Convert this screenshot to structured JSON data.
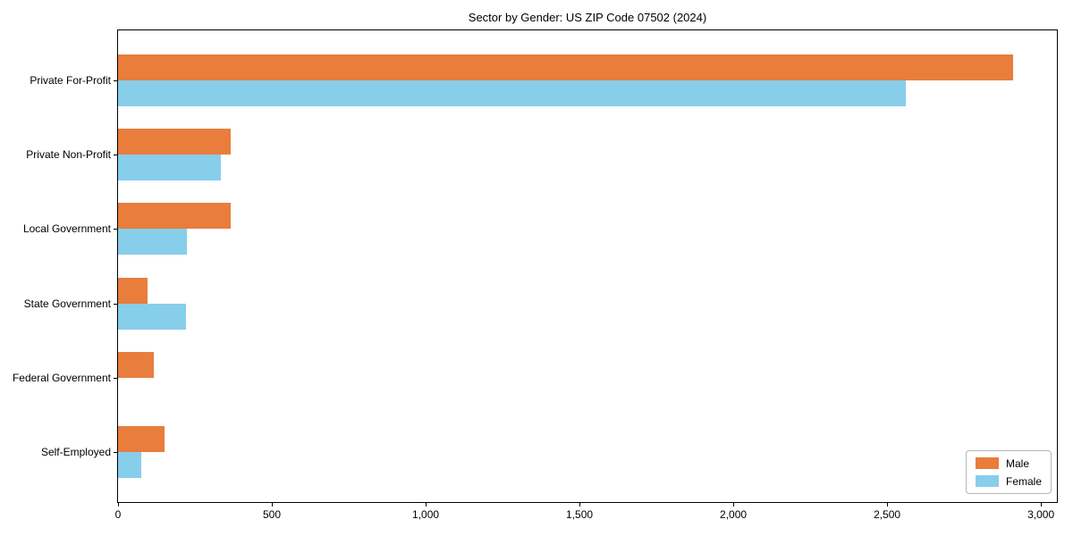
{
  "chart_data": {
    "type": "bar",
    "orientation": "horizontal",
    "title": "Sector by Gender: US ZIP Code 07502 (2024)",
    "categories": [
      "Private For-Profit",
      "Private Non-Profit",
      "Local Government",
      "State Government",
      "Federal Government",
      "Self-Employed"
    ],
    "series": [
      {
        "name": "Male",
        "color": "#E87D3C",
        "values": [
          2910,
          365,
          365,
          95,
          115,
          150
        ]
      },
      {
        "name": "Female",
        "color": "#87CEEB",
        "values": [
          2560,
          335,
          225,
          220,
          0,
          75
        ]
      }
    ],
    "xlabel": "",
    "ylabel": "",
    "xlim": [
      0,
      3052
    ],
    "x_ticks": [
      0,
      500,
      1000,
      1500,
      2000,
      2500,
      3000
    ],
    "x_tick_labels": [
      "0",
      "500",
      "1,000",
      "1,500",
      "2,000",
      "2,500",
      "3,000"
    ],
    "grid": false,
    "legend_position": "lower right"
  }
}
